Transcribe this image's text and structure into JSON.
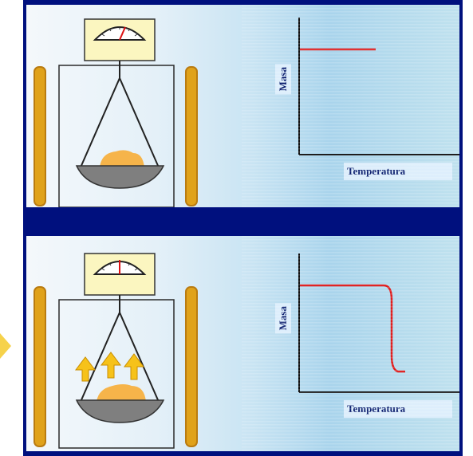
{
  "panels": [
    {
      "id": "top",
      "chart": {
        "ylabel": "Masa",
        "xlabel": "Temperatura",
        "curve": "flat",
        "line_color": "#e01c1c"
      },
      "vapor_arrows": false,
      "gauge_needle": "right"
    },
    {
      "id": "bottom",
      "chart": {
        "ylabel": "Masa",
        "xlabel": "Temperatura",
        "curve": "drop",
        "line_color": "#e01c1c"
      },
      "vapor_arrows": true,
      "gauge_needle": "center"
    }
  ],
  "colors": {
    "frame": "#00107e",
    "heater": "#e0a21a",
    "sample": "#f6b44a",
    "arrow": "#f6c21a",
    "gauge_face": "#fbf6c0"
  }
}
